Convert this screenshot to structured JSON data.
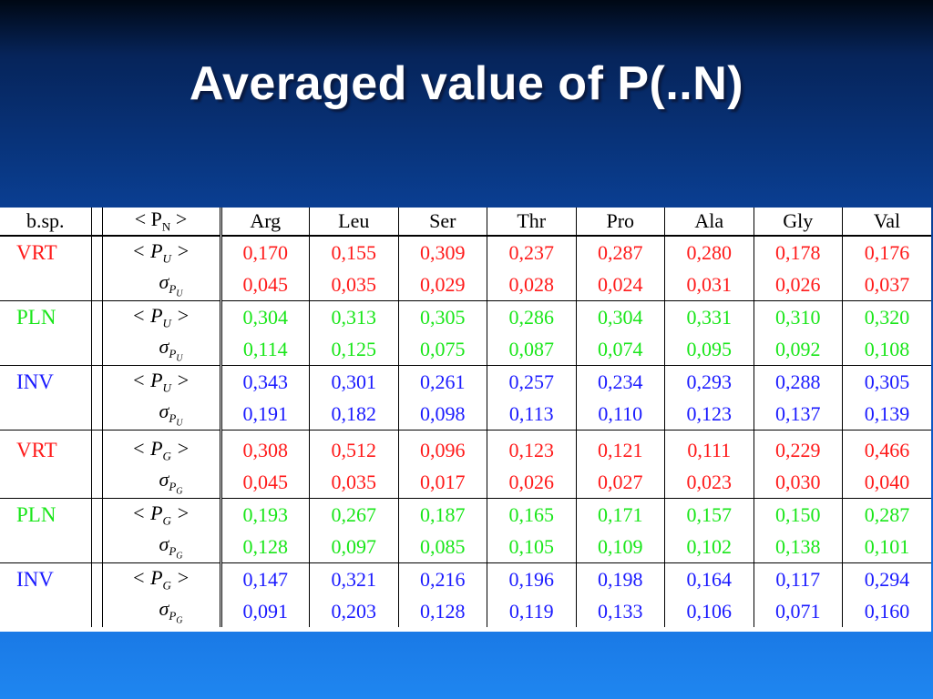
{
  "slide": {
    "title": "Averaged value of P(..N)"
  },
  "table": {
    "header": {
      "bsp": "b.sp.",
      "pn_prefix": "< P",
      "pn_sub": "N",
      "pn_suffix": " >",
      "columns": [
        "Arg",
        "Leu",
        "Ser",
        "Thr",
        "Pro",
        "Ala",
        "Gly",
        "Val"
      ]
    },
    "colors": {
      "VRT": "#ff1a1a",
      "PLN": "#19e619",
      "INV": "#1a1aff"
    },
    "blocks": [
      {
        "param": "U",
        "rows": [
          {
            "species": "VRT",
            "mean_label": "< P",
            "mean_sub": "U",
            "sigma_label": "σ",
            "sigma_sub": "P",
            "mean": [
              "0,170",
              "0,155",
              "0,309",
              "0,237",
              "0,287",
              "0,280",
              "0,178",
              "0,176"
            ],
            "sigma": [
              "0,045",
              "0,035",
              "0,029",
              "0,028",
              "0,024",
              "0,031",
              "0,026",
              "0,037"
            ]
          },
          {
            "species": "PLN",
            "mean_label": "< P",
            "mean_sub": "U",
            "sigma_label": "σ",
            "sigma_sub": "P",
            "mean": [
              "0,304",
              "0,313",
              "0,305",
              "0,286",
              "0,304",
              "0,331",
              "0,310",
              "0,320"
            ],
            "sigma": [
              "0,114",
              "0,125",
              "0,075",
              "0,087",
              "0,074",
              "0,095",
              "0,092",
              "0,108"
            ]
          },
          {
            "species": "INV",
            "mean_label": "< P",
            "mean_sub": "U",
            "sigma_label": "σ",
            "sigma_sub": "P",
            "mean": [
              "0,343",
              "0,301",
              "0,261",
              "0,257",
              "0,234",
              "0,293",
              "0,288",
              "0,305"
            ],
            "sigma": [
              "0,191",
              "0,182",
              "0,098",
              "0,113",
              "0,110",
              "0,123",
              "0,137",
              "0,139"
            ]
          }
        ]
      },
      {
        "param": "G",
        "rows": [
          {
            "species": "VRT",
            "mean_label": "< P",
            "mean_sub": "G",
            "sigma_label": "σ",
            "sigma_sub": "P",
            "mean": [
              "0,308",
              "0,512",
              "0,096",
              "0,123",
              "0,121",
              "0,111",
              "0,229",
              "0,466"
            ],
            "sigma": [
              "0,045",
              "0,035",
              "0,017",
              "0,026",
              "0,027",
              "0,023",
              "0,030",
              "0,040"
            ]
          },
          {
            "species": "PLN",
            "mean_label": "< P",
            "mean_sub": "G",
            "sigma_label": "σ",
            "sigma_sub": "P",
            "mean": [
              "0,193",
              "0,267",
              "0,187",
              "0,165",
              "0,171",
              "0,157",
              "0,150",
              "0,287"
            ],
            "sigma": [
              "0,128",
              "0,097",
              "0,085",
              "0,105",
              "0,109",
              "0,102",
              "0,138",
              "0,101"
            ]
          },
          {
            "species": "INV",
            "mean_label": "< P",
            "mean_sub": "G",
            "sigma_label": "σ",
            "sigma_sub": "P",
            "mean": [
              "0,147",
              "0,321",
              "0,216",
              "0,196",
              "0,198",
              "0,164",
              "0,117",
              "0,294"
            ],
            "sigma": [
              "0,091",
              "0,203",
              "0,128",
              "0,119",
              "0,133",
              "0,106",
              "0,071",
              "0,160"
            ]
          }
        ]
      }
    ]
  }
}
